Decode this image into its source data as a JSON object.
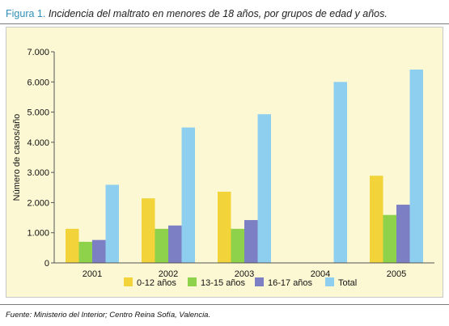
{
  "figure": {
    "label": "Figura 1.",
    "title": "Incidencia del maltrato en menores de 18 años, por grupos de edad y años.",
    "source": "Fuente: Ministerio del Interior; Centro Reina Sofía, Valencia."
  },
  "chart_data": {
    "type": "bar",
    "categories": [
      "2001",
      "2002",
      "2003",
      "2004",
      "2005"
    ],
    "series": [
      {
        "name": "0-12 años",
        "color": "#f2d33a",
        "values": [
          1130,
          2140,
          2360,
          0,
          2890
        ]
      },
      {
        "name": "13-15 años",
        "color": "#8ed14a",
        "values": [
          700,
          1130,
          1130,
          0,
          1590
        ]
      },
      {
        "name": "16-17 años",
        "color": "#7c7fc4",
        "values": [
          760,
          1240,
          1420,
          0,
          1930
        ]
      },
      {
        "name": "Total",
        "color": "#8ecff0",
        "values": [
          2590,
          4490,
          4930,
          6000,
          6410
        ]
      }
    ],
    "ylabel": "Número de casos/año",
    "xlabel": "",
    "ylim": [
      0,
      7000
    ],
    "yticks": [
      0,
      1000,
      2000,
      3000,
      4000,
      5000,
      6000,
      7000
    ],
    "ytick_labels": [
      "0",
      "1.000",
      "2.000",
      "3.000",
      "4.000",
      "5.000",
      "6.000",
      "7.000"
    ],
    "grid": false,
    "legend_position": "bottom"
  }
}
